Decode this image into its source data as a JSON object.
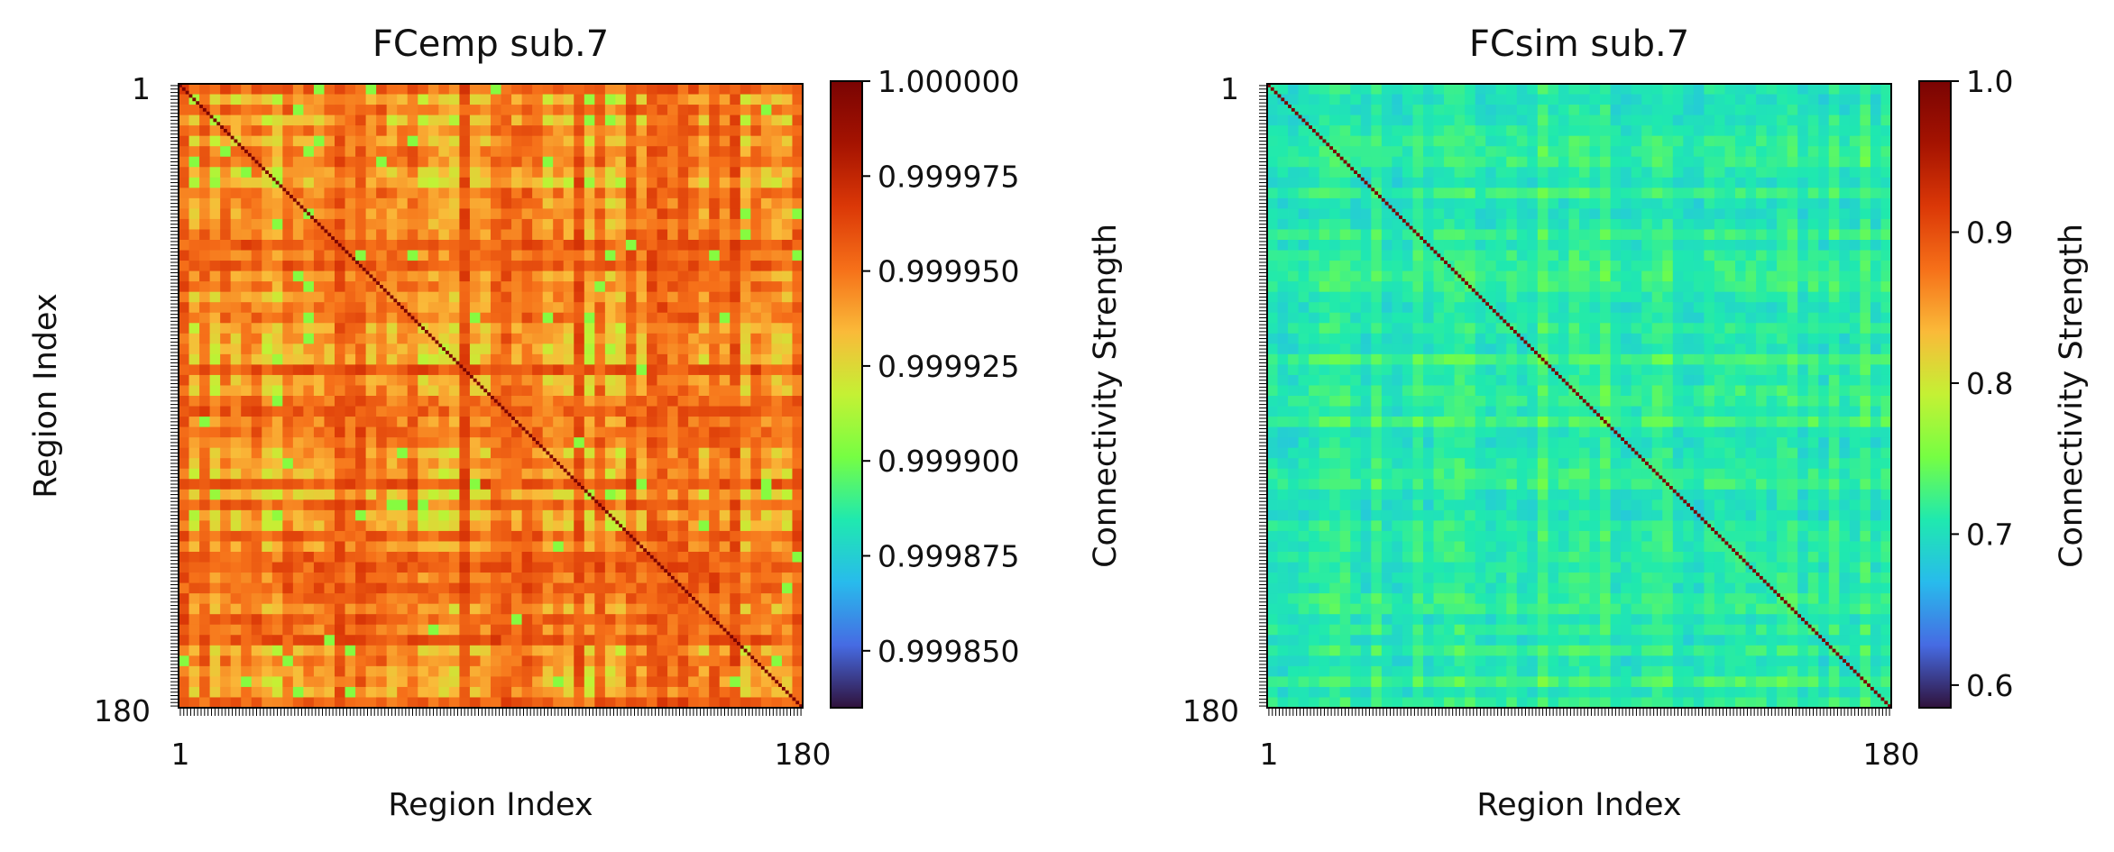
{
  "chart_data": [
    {
      "type": "heatmap",
      "title": "FCemp sub.7",
      "xlabel": "Region Index",
      "ylabel": "Region Index",
      "x_tick_labels": [
        "1",
        "180"
      ],
      "y_tick_labels": [
        "1",
        "180"
      ],
      "n_regions": 180,
      "colormap": "turbo",
      "colorbar": {
        "label": "Connectivity Strength",
        "range": [
          0.999835,
          1.0
        ],
        "ticks": [
          1.0,
          0.999975,
          0.99995,
          0.999925,
          0.9999,
          0.999875,
          0.99985
        ],
        "tick_labels": [
          "1.000000",
          "0.999975",
          "0.999950",
          "0.999925",
          "0.999900",
          "0.999875",
          "0.999850"
        ]
      },
      "typical_offdiagonal": 0.99997,
      "diagonal_value": 1.0
    },
    {
      "type": "heatmap",
      "title": "FCsim sub.7",
      "xlabel": "Region Index",
      "ylabel": "",
      "x_tick_labels": [
        "1",
        "180"
      ],
      "y_tick_labels": [
        "1",
        "180"
      ],
      "n_regions": 180,
      "colormap": "turbo",
      "colorbar": {
        "label": "Connectivity Strength",
        "range": [
          0.585,
          1.0
        ],
        "ticks": [
          1.0,
          0.9,
          0.8,
          0.7,
          0.6
        ],
        "tick_labels": [
          "1.0",
          "0.9",
          "0.8",
          "0.7",
          "0.6"
        ]
      },
      "typical_offdiagonal": 0.7,
      "diagonal_value": 1.0
    }
  ]
}
